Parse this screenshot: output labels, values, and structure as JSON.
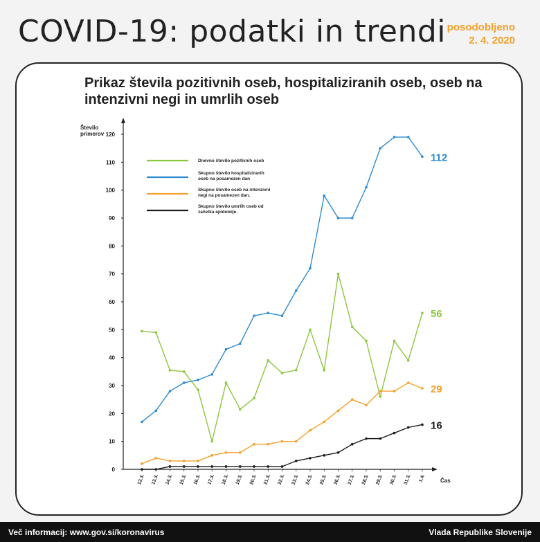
{
  "header": {
    "title": "COVID-19: podatki in trendi",
    "updated_label": "posodobljeno",
    "updated_date": "2. 4. 2020"
  },
  "footer": {
    "left": "Več informacij: www.gov.si/koronavirus",
    "right": "Vlada Republike Slovenije"
  },
  "chart_data": {
    "type": "line",
    "title": "Prikaz števila pozitivnih oseb, hospitaliziranih oseb, oseb na intenzivni negi in umrlih oseb",
    "ylabel": "Število primerov",
    "xlabel": "Čas",
    "ylim": [
      0,
      120
    ],
    "yticks": [
      0,
      10,
      20,
      30,
      40,
      50,
      60,
      70,
      80,
      90,
      100,
      110,
      120
    ],
    "categories": [
      "12.3.",
      "13.3.",
      "14.3.",
      "15.3.",
      "16.3.",
      "17.3.",
      "18.3.",
      "19.3.",
      "20.3.",
      "21.3.",
      "22.3.",
      "23.3.",
      "24.3.",
      "25.3.",
      "26.3.",
      "27.3.",
      "28.3.",
      "29.3.",
      "30.3.",
      "31.3.",
      "1.4."
    ],
    "series": [
      {
        "name": "Dnevno število pozitivnih oseb",
        "color": "#8dc63f",
        "end_label": "56",
        "values": [
          49.5,
          49,
          35.5,
          35,
          28.5,
          10,
          31,
          21.5,
          25.5,
          39,
          34.5,
          35.5,
          50,
          35.5,
          70,
          51,
          46,
          26,
          46,
          39,
          56
        ]
      },
      {
        "name": "Skupno število hospitaliziranih oseb na posamezen dan",
        "color": "#2d8bd1",
        "end_label": "112",
        "values": [
          17,
          21,
          28,
          31,
          32,
          34,
          43,
          45,
          55,
          56,
          55,
          64,
          72,
          98,
          90,
          90,
          101,
          115,
          119,
          119,
          112
        ]
      },
      {
        "name": "Skupno število oseb na intenzivni negi na posamezen dan.",
        "color": "#f5a02b",
        "end_label": "29",
        "values": [
          2,
          4,
          3,
          3,
          3,
          5,
          6,
          6,
          9,
          9,
          10,
          10,
          14,
          17,
          21,
          25,
          23,
          28,
          28,
          31,
          29
        ]
      },
      {
        "name": "Skupno število umrlih oseb od začetka epidemije.",
        "color": "#1a1a1a",
        "end_label": "16",
        "values": [
          0,
          0,
          1,
          1,
          1,
          1,
          1,
          1,
          1,
          1,
          1,
          3,
          4,
          5,
          6,
          9,
          11,
          11,
          13,
          15,
          16
        ]
      }
    ],
    "legend": "top-left",
    "grid": false
  }
}
